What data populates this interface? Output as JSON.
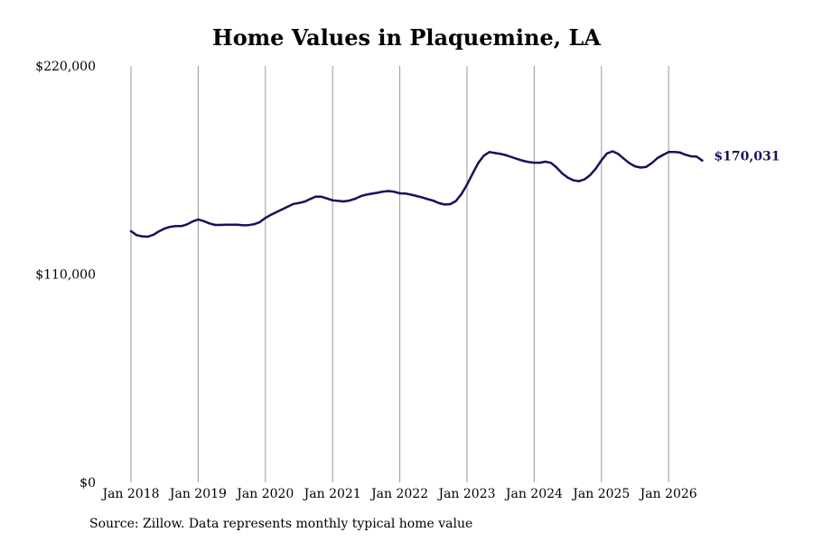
{
  "source_note": "Source: Zillow. Data represents monthly typical home value",
  "chart_data": {
    "type": "line",
    "title": "Home Values in Plaquemine, LA",
    "xlabel": "",
    "ylabel": "",
    "ylim": [
      0,
      220000
    ],
    "y_ticks": [
      {
        "value": 0,
        "label": "$0"
      },
      {
        "value": 110000,
        "label": "$110,000"
      },
      {
        "value": 220000,
        "label": "$220,000"
      }
    ],
    "x_ticks": [
      {
        "value": "2018-01",
        "label": "Jan 2018"
      },
      {
        "value": "2019-01",
        "label": "Jan 2019"
      },
      {
        "value": "2020-01",
        "label": "Jan 2020"
      },
      {
        "value": "2021-01",
        "label": "Jan 2021"
      },
      {
        "value": "2022-01",
        "label": "Jan 2022"
      },
      {
        "value": "2023-01",
        "label": "Jan 2023"
      },
      {
        "value": "2024-01",
        "label": "Jan 2024"
      },
      {
        "value": "2025-01",
        "label": "Jan 2025"
      },
      {
        "value": "2026-01",
        "label": "Jan 2026"
      }
    ],
    "grid": "vertical",
    "line_color": "#14145e",
    "end_label": "$170,031",
    "series": [
      {
        "x": [
          "2018-01",
          "2018-02",
          "2018-03",
          "2018-04",
          "2018-05",
          "2018-06",
          "2018-07",
          "2018-08",
          "2018-09",
          "2018-10",
          "2018-11",
          "2018-12",
          "2019-01",
          "2019-02",
          "2019-03",
          "2019-04",
          "2019-05",
          "2019-06",
          "2019-07",
          "2019-08",
          "2019-09",
          "2019-10",
          "2019-11",
          "2019-12",
          "2020-01",
          "2020-02",
          "2020-03",
          "2020-04",
          "2020-05",
          "2020-06",
          "2020-07",
          "2020-08",
          "2020-09",
          "2020-10",
          "2020-11",
          "2020-12",
          "2021-01",
          "2021-02",
          "2021-03",
          "2021-04",
          "2021-05",
          "2021-06",
          "2021-07",
          "2021-08",
          "2021-09",
          "2021-10",
          "2021-11",
          "2021-12",
          "2022-01",
          "2022-02",
          "2022-03",
          "2022-04",
          "2022-05",
          "2022-06",
          "2022-07",
          "2022-08",
          "2022-09",
          "2022-10",
          "2022-11",
          "2022-12",
          "2023-01",
          "2023-02",
          "2023-03",
          "2023-04",
          "2023-05",
          "2023-06",
          "2023-07",
          "2023-08",
          "2023-09",
          "2023-10",
          "2023-11",
          "2023-12",
          "2024-01",
          "2024-02",
          "2024-03",
          "2024-04",
          "2024-05",
          "2024-06",
          "2024-07",
          "2024-08",
          "2024-09",
          "2024-10",
          "2024-11",
          "2024-12",
          "2025-01",
          "2025-02",
          "2025-03",
          "2025-04",
          "2025-05",
          "2025-06",
          "2025-07",
          "2025-08",
          "2025-09",
          "2025-10",
          "2025-11",
          "2025-12",
          "2026-01",
          "2026-02",
          "2026-03",
          "2026-04",
          "2026-05",
          "2026-06",
          "2026-07"
        ],
        "y": [
          132700,
          130600,
          130000,
          129800,
          130800,
          132600,
          134100,
          135000,
          135400,
          135400,
          136300,
          137800,
          138900,
          138000,
          136800,
          136000,
          136000,
          136100,
          136100,
          136100,
          135800,
          135900,
          136400,
          137500,
          139700,
          141400,
          142800,
          144200,
          145700,
          147100,
          147600,
          148300,
          149700,
          151000,
          150900,
          150000,
          149000,
          148700,
          148400,
          148900,
          149800,
          151200,
          152000,
          152500,
          153000,
          153600,
          153900,
          153500,
          152700,
          152600,
          152000,
          151300,
          150500,
          149600,
          148800,
          147500,
          146800,
          147000,
          148600,
          152300,
          157300,
          163100,
          168700,
          172600,
          174500,
          174000,
          173500,
          172800,
          171800,
          170800,
          169900,
          169200,
          168900,
          168900,
          169400,
          168800,
          166300,
          163200,
          161000,
          159600,
          159100,
          160100,
          162400,
          165800,
          170200,
          173800,
          174900,
          173500,
          171000,
          168600,
          167000,
          166300,
          166700,
          168700,
          171300,
          173000,
          174500,
          174500,
          174300,
          173100,
          172300,
          172100,
          170031
        ]
      }
    ]
  }
}
